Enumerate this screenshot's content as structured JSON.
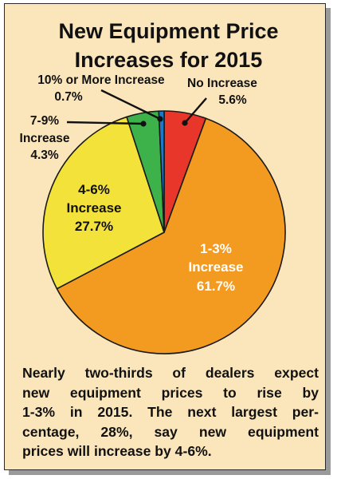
{
  "chart_data": {
    "type": "pie",
    "title_lines": [
      "New Equipment Price",
      "Increases for 2015"
    ],
    "slices": [
      {
        "label_lines": [
          "No Increase",
          "5.6%"
        ],
        "value": 5.6,
        "color": "#e8362a"
      },
      {
        "label_lines": [
          "1-3%",
          "Increase",
          "61.7%"
        ],
        "value": 61.7,
        "color": "#f39a21"
      },
      {
        "label_lines": [
          "4-6%",
          "Increase",
          "27.7%"
        ],
        "value": 27.7,
        "color": "#f3e23a"
      },
      {
        "label_lines": [
          "7-9%",
          "Increase",
          "4.3%"
        ],
        "value": 4.3,
        "color": "#3db24a"
      },
      {
        "label_lines": [
          "10% or More Increase",
          "0.7%"
        ],
        "value": 0.7,
        "color": "#1e78c8"
      }
    ]
  },
  "caption_lines": [
    "Nearly two-thirds of dealers expect",
    "new equipment prices to rise by",
    "1-3% in 2015. The next largest per-",
    "centage, 28%, say new equipment",
    "prices will increase by 4-6%."
  ]
}
